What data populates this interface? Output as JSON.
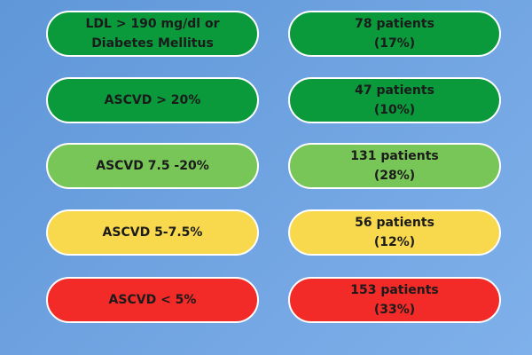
{
  "colors": {
    "dark_green": "#0a9a3c",
    "light_green": "#77c657",
    "yellow": "#f8d94e",
    "red": "#f22b28",
    "border": "#ffffff",
    "background": "#6ea2e0"
  },
  "rows": [
    {
      "category": "LDL > 190 mg/dl or\nDiabetes Mellitus",
      "patients": "78 patients\n(17%)",
      "color": "dark_green",
      "count": 78,
      "percent": 17
    },
    {
      "category": "ASCVD > 20%",
      "patients": "47 patients\n(10%)",
      "color": "dark_green",
      "count": 47,
      "percent": 10
    },
    {
      "category": "ASCVD 7.5 -20%",
      "patients": "131 patients\n(28%)",
      "color": "light_green",
      "count": 131,
      "percent": 28
    },
    {
      "category": "ASCVD 5-7.5%",
      "patients": "56 patients\n(12%)",
      "color": "yellow",
      "count": 56,
      "percent": 12
    },
    {
      "category": "ASCVD < 5%",
      "patients": "153 patients\n(33%)",
      "color": "red",
      "count": 153,
      "percent": 33
    }
  ]
}
